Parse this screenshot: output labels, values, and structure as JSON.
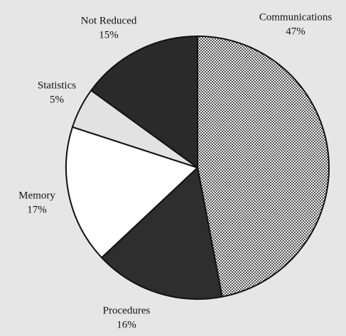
{
  "chart_data": {
    "type": "pie",
    "categories": [
      "Communications",
      "Procedures",
      "Memory",
      "Statistics",
      "Not Reduced"
    ],
    "values": [
      47,
      16,
      17,
      5,
      15
    ],
    "value_labels": [
      "47%",
      "16%",
      "17%",
      "5%",
      "15%"
    ],
    "colors": [
      "#c4c4c4",
      "#2e2e2e",
      "#ffffff",
      "#e2e2e2",
      "#2a2a2a"
    ]
  }
}
